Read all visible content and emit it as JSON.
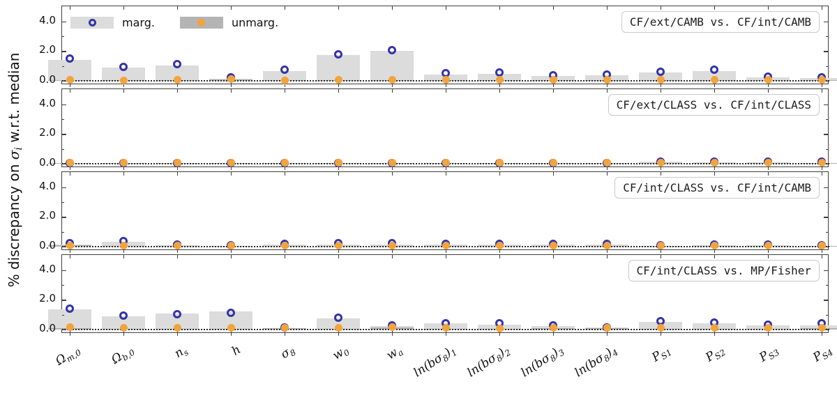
{
  "figure": {
    "ylabel": {
      "prefix": "% discrepancy on ",
      "sigma": "σ",
      "sigma_sub": "i",
      "suffix": " w.r.t. median"
    },
    "ytick_labels": [
      "4.0",
      "2.0",
      "0.0"
    ],
    "legend": {
      "items": [
        {
          "label": "marg.",
          "marker": "open-circle-icon",
          "patch_color": "#dcdcdc",
          "marker_color": "#3434a8"
        },
        {
          "label": "unmarg.",
          "marker": "filled-circle-icon",
          "patch_color": "#b4b4b4",
          "marker_color": "#f2a43c"
        }
      ]
    },
    "colors": {
      "marg_bar": "#dcdcdc",
      "unmarg_bar": "#b2b2b2",
      "marg_marker": "#3434a8",
      "unmarg_marker": "#f2a43c",
      "spine": "#3d3d3d",
      "zero_line": "#2a2a2a"
    }
  },
  "chart_data": {
    "type": "bar",
    "subtype": "4 vertically stacked subplots sharing one categorical x-axis; each panel has light-gray bars with dark-blue open-circle markers (marg.) and dark-gray bars with orange filled-circle markers (unmarg.)",
    "title": "",
    "xlabel": "",
    "ylabel": "% discrepancy on σ_i w.r.t. median",
    "ylim": [
      -0.3,
      5.0
    ],
    "yticks": [
      0.0,
      2.0,
      4.0
    ],
    "grid": false,
    "zero_line": "dotted black at y=0",
    "legend": [
      "marg.",
      "unmarg."
    ],
    "legend_position": "upper left of first panel",
    "categories": [
      "Ω_m,0",
      "Ω_b,0",
      "n_s",
      "h",
      "σ_8",
      "w_0",
      "w_a",
      "ln(bσ_8)_1",
      "ln(bσ_8)_2",
      "ln(bσ_8)_3",
      "ln(bσ_8)_4",
      "P_S1",
      "P_S2",
      "P_S3",
      "P_S4"
    ],
    "categories_rich": [
      [
        {
          "t": "Ω"
        },
        {
          "t": "m,0",
          "sub": true
        }
      ],
      [
        {
          "t": "Ω"
        },
        {
          "t": "b,0",
          "sub": true
        }
      ],
      [
        {
          "t": "n"
        },
        {
          "t": "s",
          "sub": true
        }
      ],
      [
        {
          "t": "h"
        }
      ],
      [
        {
          "t": "σ"
        },
        {
          "t": "8",
          "sub": true
        }
      ],
      [
        {
          "t": "w"
        },
        {
          "t": "0",
          "sub": true
        }
      ],
      [
        {
          "t": "w"
        },
        {
          "t": "a",
          "sub": true
        }
      ],
      [
        {
          "t": "ln(bσ"
        },
        {
          "t": "8",
          "sub": true
        },
        {
          "t": ")"
        },
        {
          "t": "1",
          "sub": true
        }
      ],
      [
        {
          "t": "ln(bσ"
        },
        {
          "t": "8",
          "sub": true
        },
        {
          "t": ")"
        },
        {
          "t": "2",
          "sub": true
        }
      ],
      [
        {
          "t": "ln(bσ"
        },
        {
          "t": "8",
          "sub": true
        },
        {
          "t": ")"
        },
        {
          "t": "3",
          "sub": true
        }
      ],
      [
        {
          "t": "ln(bσ"
        },
        {
          "t": "8",
          "sub": true
        },
        {
          "t": ")"
        },
        {
          "t": "4",
          "sub": true
        }
      ],
      [
        {
          "t": "P"
        },
        {
          "t": "S1",
          "sub": true
        }
      ],
      [
        {
          "t": "P"
        },
        {
          "t": "S2",
          "sub": true
        }
      ],
      [
        {
          "t": "P"
        },
        {
          "t": "S3",
          "sub": true
        }
      ],
      [
        {
          "t": "P"
        },
        {
          "t": "S4",
          "sub": true
        }
      ]
    ],
    "panels": [
      {
        "label": "CF/ext/CAMB vs. CF/int/CAMB",
        "series": [
          {
            "name": "marg. (bar)",
            "values": [
              1.42,
              0.88,
              1.05,
              0.15,
              0.68,
              1.74,
              2.02,
              0.44,
              0.48,
              0.32,
              0.36,
              0.56,
              0.66,
              0.24,
              0.18
            ]
          },
          {
            "name": "marg. (marker)",
            "values": [
              1.5,
              0.95,
              1.12,
              0.22,
              0.74,
              1.8,
              2.08,
              0.5,
              0.54,
              0.38,
              0.41,
              0.63,
              0.73,
              0.3,
              0.24
            ]
          },
          {
            "name": "unmarg. (bar)",
            "values": [
              0.06,
              0.04,
              0.05,
              0.1,
              0.04,
              0.05,
              0.06,
              0.05,
              0.05,
              0.05,
              0.05,
              0.05,
              0.05,
              0.05,
              0.06
            ]
          },
          {
            "name": "unmarg. (marker)",
            "values": [
              0.05,
              0.04,
              0.05,
              0.1,
              0.04,
              0.06,
              0.08,
              0.05,
              0.05,
              0.05,
              0.05,
              0.05,
              0.05,
              0.05,
              0.08
            ]
          }
        ]
      },
      {
        "label": "CF/ext/CLASS vs. CF/int/CLASS",
        "series": [
          {
            "name": "marg. (bar)",
            "values": [
              0.03,
              0.03,
              0.03,
              0.03,
              0.03,
              0.03,
              0.03,
              0.04,
              0.04,
              0.04,
              0.04,
              0.14,
              0.08,
              0.08,
              0.06
            ]
          },
          {
            "name": "marg. (marker)",
            "values": [
              0.06,
              0.06,
              0.06,
              0.06,
              0.06,
              0.06,
              0.06,
              0.07,
              0.07,
              0.07,
              0.07,
              0.16,
              0.12,
              0.12,
              0.12
            ]
          },
          {
            "name": "unmarg. (bar)",
            "values": [
              0.03,
              0.03,
              0.03,
              0.03,
              0.03,
              0.03,
              0.03,
              0.03,
              0.03,
              0.03,
              0.03,
              0.03,
              0.03,
              0.03,
              0.03
            ]
          },
          {
            "name": "unmarg. (marker)",
            "values": [
              0.05,
              0.05,
              0.05,
              0.05,
              0.05,
              0.05,
              0.05,
              0.05,
              0.05,
              0.05,
              0.05,
              0.05,
              0.05,
              0.05,
              0.05
            ]
          }
        ]
      },
      {
        "label": "CF/int/CLASS vs. CF/int/CAMB",
        "series": [
          {
            "name": "marg. (bar)",
            "values": [
              0.12,
              0.32,
              0.08,
              0.05,
              0.15,
              0.12,
              0.12,
              0.16,
              0.16,
              0.16,
              0.16,
              0.06,
              0.08,
              0.08,
              0.06
            ]
          },
          {
            "name": "marg. (marker)",
            "values": [
              0.22,
              0.38,
              0.15,
              0.1,
              0.2,
              0.24,
              0.24,
              0.2,
              0.2,
              0.2,
              0.2,
              0.1,
              0.13,
              0.13,
              0.1
            ]
          },
          {
            "name": "unmarg. (bar)",
            "values": [
              0.08,
              0.04,
              0.04,
              0.04,
              0.05,
              0.05,
              0.05,
              0.06,
              0.06,
              0.06,
              0.06,
              0.04,
              0.04,
              0.04,
              0.04
            ]
          },
          {
            "name": "unmarg. (marker)",
            "values": [
              0.06,
              0.05,
              0.05,
              0.06,
              0.05,
              0.05,
              0.05,
              0.06,
              0.06,
              0.06,
              0.06,
              0.08,
              0.05,
              0.05,
              0.05
            ]
          }
        ]
      },
      {
        "label": "CF/int/CLASS vs. MP/Fisher",
        "series": [
          {
            "name": "marg. (bar)",
            "values": [
              1.35,
              0.9,
              1.1,
              1.2,
              0.1,
              0.76,
              0.22,
              0.4,
              0.34,
              0.24,
              0.12,
              0.5,
              0.4,
              0.3,
              0.26
            ]
          },
          {
            "name": "marg. (marker)",
            "values": [
              1.4,
              0.95,
              1.03,
              1.12,
              0.15,
              0.8,
              0.3,
              0.44,
              0.4,
              0.28,
              0.16,
              0.55,
              0.46,
              0.34,
              0.4
            ]
          },
          {
            "name": "unmarg. (bar)",
            "values": [
              0.1,
              0.06,
              0.06,
              0.06,
              0.08,
              0.06,
              0.12,
              0.06,
              0.05,
              0.1,
              0.08,
              0.06,
              0.06,
              0.06,
              0.08
            ]
          },
          {
            "name": "unmarg. (marker)",
            "values": [
              0.15,
              0.1,
              0.1,
              0.1,
              0.12,
              0.1,
              0.15,
              0.1,
              0.08,
              0.12,
              0.1,
              0.1,
              0.1,
              0.1,
              0.12
            ]
          }
        ]
      }
    ]
  }
}
